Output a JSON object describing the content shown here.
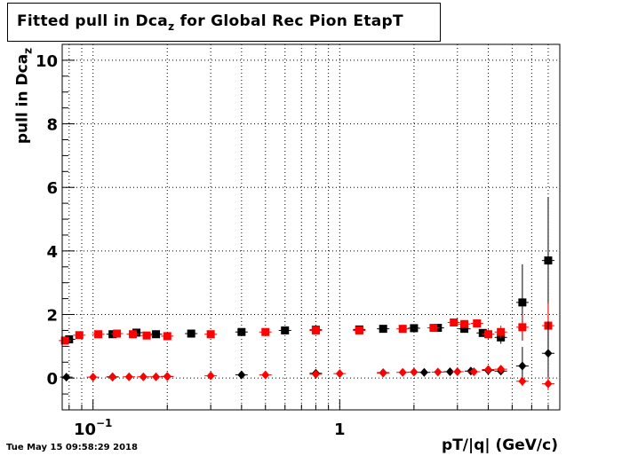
{
  "title": {
    "prefix": "Fitted pull in Dca",
    "sub": "z",
    "suffix": " for Global Rec Pion EtapT"
  },
  "datestamp": "Tue May 15 09:58:29 2018",
  "chart_data": {
    "type": "scatter",
    "title": "Fitted pull in Dcaz for Global Rec Pion EtapT",
    "xlabel": "pT/|q| (GeV/c)",
    "ylabel": {
      "prefix": "pull in Dca",
      "sub": "z"
    },
    "xscale": "log",
    "xlim": [
      0.075,
      7.8
    ],
    "ylim": [
      -1,
      10.5
    ],
    "grid": true,
    "y_ticks": [
      0,
      2,
      4,
      6,
      8,
      10
    ],
    "x_tick_labels": [
      {
        "x": 0.1,
        "base": "10",
        "exp": "−1"
      },
      {
        "x": 1,
        "base": "1",
        "exp": ""
      }
    ],
    "series": [
      {
        "marker": "square",
        "color": "#000000",
        "x": [
          0.08,
          0.12,
          0.15,
          0.18,
          0.25,
          0.4,
          0.6,
          0.8,
          1.2,
          1.5,
          2.0,
          2.5,
          3.2,
          3.8,
          4.5,
          5.5,
          7.0
        ],
        "y": [
          1.22,
          1.38,
          1.43,
          1.38,
          1.4,
          1.45,
          1.5,
          1.52,
          1.53,
          1.55,
          1.57,
          1.58,
          1.55,
          1.42,
          1.28,
          2.38,
          3.7
        ],
        "yerr": [
          0.05,
          0.04,
          0.04,
          0.04,
          0.03,
          0.03,
          0.03,
          0.03,
          0.03,
          0.03,
          0.04,
          0.05,
          0.08,
          0.12,
          0.2,
          1.2,
          2.0
        ]
      },
      {
        "marker": "square",
        "color": "#ff0000",
        "x": [
          0.077,
          0.088,
          0.105,
          0.125,
          0.145,
          0.165,
          0.2,
          0.3,
          0.5,
          0.8,
          1.2,
          1.8,
          2.4,
          2.9,
          3.2,
          3.6,
          4.0,
          4.5,
          5.5,
          7.0
        ],
        "y": [
          1.18,
          1.35,
          1.38,
          1.4,
          1.38,
          1.34,
          1.32,
          1.38,
          1.45,
          1.5,
          1.5,
          1.55,
          1.58,
          1.75,
          1.7,
          1.72,
          1.38,
          1.45,
          1.6,
          1.65
        ],
        "yerr": [
          0.05,
          0.04,
          0.04,
          0.04,
          0.04,
          0.03,
          0.03,
          0.03,
          0.03,
          0.03,
          0.03,
          0.04,
          0.05,
          0.08,
          0.09,
          0.1,
          0.15,
          0.2,
          0.4,
          0.7
        ]
      },
      {
        "marker": "diamond",
        "color": "#000000",
        "x": [
          0.078,
          0.12,
          0.2,
          0.4,
          0.8,
          1.5,
          2.2,
          2.8,
          3.4,
          4.0,
          4.5,
          5.5,
          7.0
        ],
        "y": [
          0.03,
          0.04,
          0.05,
          0.1,
          0.15,
          0.17,
          0.18,
          0.2,
          0.22,
          0.24,
          0.22,
          0.38,
          0.78
        ],
        "yerr": [
          0.03,
          0.02,
          0.02,
          0.02,
          0.02,
          0.02,
          0.03,
          0.04,
          0.05,
          0.07,
          0.1,
          0.6,
          1.0
        ]
      },
      {
        "marker": "diamond",
        "color": "#ff0000",
        "x": [
          0.1,
          0.12,
          0.14,
          0.16,
          0.18,
          0.2,
          0.3,
          0.5,
          0.8,
          1.0,
          1.5,
          1.8,
          2.0,
          2.5,
          3.0,
          3.5,
          4.0,
          4.5,
          5.5,
          7.0
        ],
        "y": [
          0.03,
          0.03,
          0.04,
          0.04,
          0.04,
          0.05,
          0.07,
          0.1,
          0.12,
          0.14,
          0.16,
          0.18,
          0.19,
          0.19,
          0.2,
          0.2,
          0.27,
          0.28,
          -0.1,
          -0.18
        ],
        "yerr": [
          0.02,
          0.02,
          0.02,
          0.02,
          0.02,
          0.02,
          0.02,
          0.02,
          0.02,
          0.02,
          0.02,
          0.03,
          0.03,
          0.04,
          0.05,
          0.06,
          0.07,
          0.1,
          0.15,
          0.2
        ]
      }
    ]
  }
}
